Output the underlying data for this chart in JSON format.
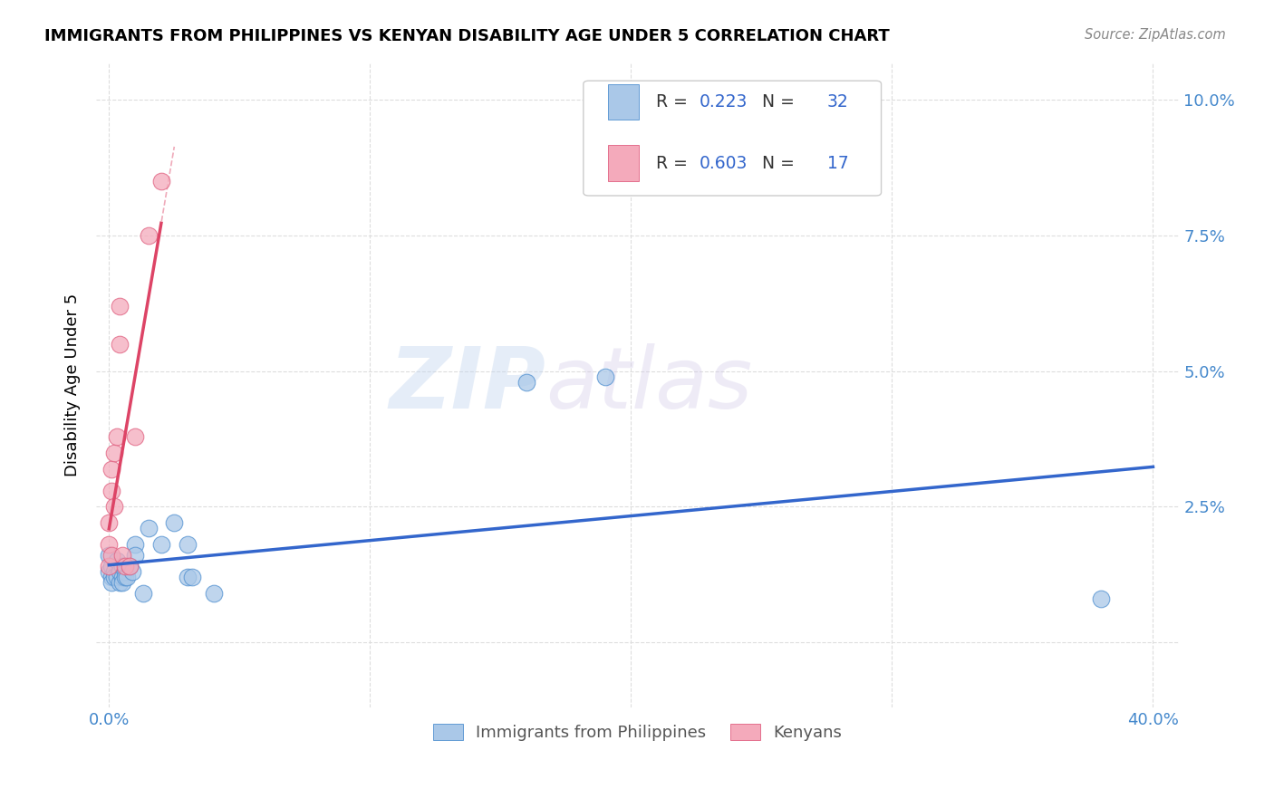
{
  "title": "IMMIGRANTS FROM PHILIPPINES VS KENYAN DISABILITY AGE UNDER 5 CORRELATION CHART",
  "source": "Source: ZipAtlas.com",
  "xlim": [
    -0.005,
    0.41
  ],
  "ylim": [
    -0.012,
    0.107
  ],
  "blue_R": "0.223",
  "blue_N": "32",
  "pink_R": "0.603",
  "pink_N": "17",
  "watermark_zip": "ZIP",
  "watermark_atlas": "atlas",
  "philippines_x": [
    0.0,
    0.0,
    0.001,
    0.001,
    0.001,
    0.002,
    0.002,
    0.003,
    0.003,
    0.004,
    0.004,
    0.005,
    0.005,
    0.005,
    0.006,
    0.006,
    0.007,
    0.008,
    0.009,
    0.01,
    0.01,
    0.013,
    0.015,
    0.02,
    0.025,
    0.03,
    0.03,
    0.032,
    0.04,
    0.16,
    0.19,
    0.38
  ],
  "philippines_y": [
    0.016,
    0.013,
    0.014,
    0.012,
    0.011,
    0.013,
    0.012,
    0.015,
    0.012,
    0.011,
    0.013,
    0.012,
    0.014,
    0.011,
    0.013,
    0.012,
    0.012,
    0.014,
    0.013,
    0.018,
    0.016,
    0.009,
    0.021,
    0.018,
    0.022,
    0.018,
    0.012,
    0.012,
    0.009,
    0.048,
    0.049,
    0.008
  ],
  "kenya_x": [
    0.0,
    0.0,
    0.0,
    0.001,
    0.001,
    0.001,
    0.002,
    0.002,
    0.003,
    0.004,
    0.004,
    0.005,
    0.006,
    0.008,
    0.01,
    0.015,
    0.02
  ],
  "kenya_y": [
    0.014,
    0.018,
    0.022,
    0.016,
    0.028,
    0.032,
    0.035,
    0.025,
    0.038,
    0.062,
    0.055,
    0.016,
    0.014,
    0.014,
    0.038,
    0.075,
    0.085
  ],
  "blue_scatter_color": "#aac8e8",
  "pink_scatter_color": "#f4aabb",
  "blue_edge_color": "#5090d0",
  "pink_edge_color": "#e06080",
  "blue_line_color": "#3366cc",
  "pink_line_color": "#dd4466",
  "tick_color": "#4488cc",
  "grid_color": "#dddddd",
  "ylabel": "Disability Age Under 5",
  "scatter_size": 180
}
